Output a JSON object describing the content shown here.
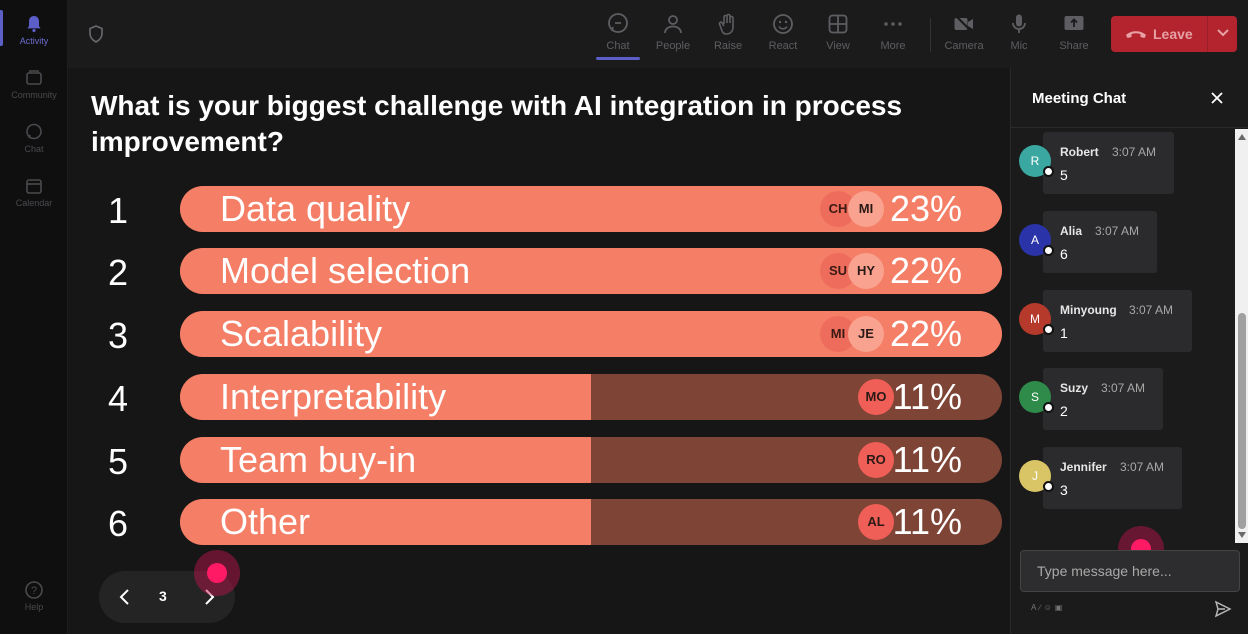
{
  "rail": {
    "items": [
      {
        "label": "Activity",
        "icon": "bell-icon",
        "active": true
      },
      {
        "label": "Community",
        "icon": "community-icon",
        "active": false
      },
      {
        "label": "Chat",
        "icon": "chat-icon",
        "active": false
      },
      {
        "label": "Calendar",
        "icon": "calendar-icon",
        "active": false
      }
    ],
    "help_label": "Help"
  },
  "toolbar": {
    "chat_label": "Chat",
    "people_label": "People",
    "raise_label": "Raise",
    "react_label": "React",
    "view_label": "View",
    "more_label": "More",
    "camera_label": "Camera",
    "mic_label": "Mic",
    "share_label": "Share",
    "leave_label": "Leave",
    "leave_color": "#b3242e",
    "accent_color": "#5b5fc7"
  },
  "poll": {
    "question": "What is your biggest challenge with AI integration in process improvement?",
    "options": [
      {
        "number": "1",
        "label": "Data quality",
        "percent_text": "23%",
        "percent": 23,
        "voters": [
          "CH",
          "MI"
        ]
      },
      {
        "number": "2",
        "label": "Model selection",
        "percent_text": "22%",
        "percent": 22,
        "voters": [
          "SU",
          "HY"
        ]
      },
      {
        "number": "3",
        "label": "Scalability",
        "percent_text": "22%",
        "percent": 22,
        "voters": [
          "MI",
          "JE"
        ]
      },
      {
        "number": "4",
        "label": "Interpretability",
        "percent_text": "11%",
        "percent": 11,
        "voters": [
          "MO"
        ]
      },
      {
        "number": "5",
        "label": "Team buy-in",
        "percent_text": "11%",
        "percent": 11,
        "voters": [
          "RO"
        ]
      },
      {
        "number": "6",
        "label": "Other",
        "percent_text": "11%",
        "percent": 11,
        "voters": [
          "AL"
        ]
      }
    ],
    "bar_color": "#f47e66",
    "track_color": "#7e4436"
  },
  "pager": {
    "page": "3"
  },
  "chat": {
    "title": "Meeting Chat",
    "messages": [
      {
        "initial": "R",
        "author": "Robert",
        "time": "3:07 AM",
        "text": "5",
        "avatar_color": "#3aa7a0"
      },
      {
        "initial": "A",
        "author": "Alia",
        "time": "3:07 AM",
        "text": "6",
        "avatar_color": "#2a34a8"
      },
      {
        "initial": "M",
        "author": "Minyoung",
        "time": "3:07 AM",
        "text": "1",
        "avatar_color": "#b53a2c"
      },
      {
        "initial": "S",
        "author": "Suzy",
        "time": "3:07 AM",
        "text": "2",
        "avatar_color": "#2e8b4a"
      },
      {
        "initial": "J",
        "author": "Jennifer",
        "time": "3:07 AM",
        "text": "3",
        "avatar_color": "#d9c466"
      }
    ],
    "input_placeholder": "Type message here..."
  }
}
